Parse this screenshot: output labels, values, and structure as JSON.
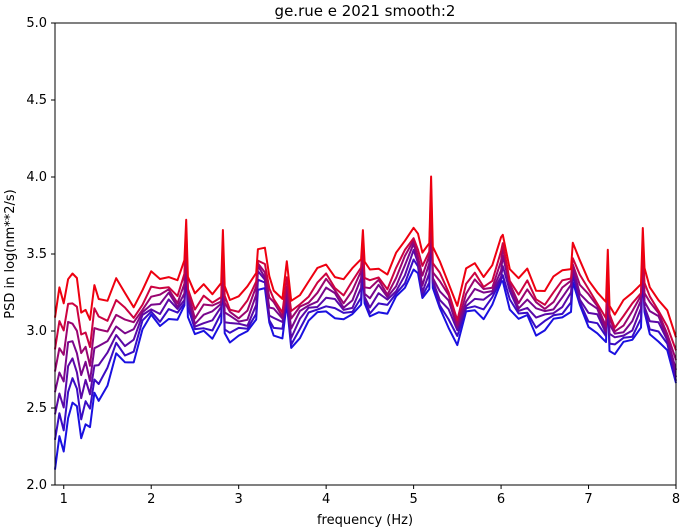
{
  "chart_data": {
    "type": "line",
    "title": "ge.rue e 2021 smooth:2",
    "xlabel": "frequency (Hz)",
    "ylabel": "PSD in log(nm**2/s)",
    "xlim": [
      0.9,
      8.0
    ],
    "ylim": [
      2.0,
      5.0
    ],
    "xticks": [
      1,
      2,
      3,
      4,
      5,
      6,
      7,
      8
    ],
    "yticks": [
      2.0,
      2.5,
      3.0,
      3.5,
      4.0,
      4.5,
      5.0
    ],
    "xtick_labels": [
      "1",
      "2",
      "3",
      "4",
      "5",
      "6",
      "7",
      "8"
    ],
    "ytick_labels": [
      "2.0",
      "2.5",
      "3.0",
      "3.5",
      "4.0",
      "4.5",
      "5.0"
    ],
    "grid": false,
    "legend": "none",
    "series_colors": [
      "#1a10e0",
      "#3a0cc4",
      "#5a09a8",
      "#7a078c",
      "#9a0570",
      "#cc0340",
      "#ee0010"
    ],
    "baseline": {
      "x": [
        0.9,
        0.95,
        1.0,
        1.05,
        1.1,
        1.15,
        1.2,
        1.25,
        1.3,
        1.35,
        1.4,
        1.5,
        1.6,
        1.7,
        1.8,
        1.9,
        2.0,
        2.1,
        2.2,
        2.3,
        2.38,
        2.4,
        2.42,
        2.5,
        2.6,
        2.7,
        2.8,
        2.82,
        2.84,
        2.9,
        3.0,
        3.1,
        3.2,
        3.22,
        3.3,
        3.35,
        3.4,
        3.5,
        3.55,
        3.6,
        3.7,
        3.8,
        3.9,
        4.0,
        4.1,
        4.2,
        4.3,
        4.4,
        4.42,
        4.44,
        4.5,
        4.6,
        4.7,
        4.8,
        4.9,
        5.0,
        5.05,
        5.1,
        5.18,
        5.2,
        5.22,
        5.3,
        5.4,
        5.5,
        5.6,
        5.7,
        5.8,
        5.9,
        6.0,
        6.02,
        6.1,
        6.2,
        6.3,
        6.4,
        6.5,
        6.6,
        6.7,
        6.8,
        6.82,
        6.9,
        7.0,
        7.1,
        7.2,
        7.22,
        7.24,
        7.3,
        7.4,
        7.5,
        7.6,
        7.62,
        7.64,
        7.7,
        7.8,
        7.9,
        8.0
      ],
      "y": [
        3.05,
        3.2,
        3.1,
        3.3,
        3.32,
        3.25,
        3.05,
        3.1,
        3.0,
        3.2,
        3.15,
        3.15,
        3.25,
        3.15,
        3.1,
        3.2,
        3.28,
        3.25,
        3.3,
        3.25,
        3.35,
        3.65,
        3.3,
        3.15,
        3.2,
        3.18,
        3.25,
        3.55,
        3.2,
        3.15,
        3.15,
        3.18,
        3.3,
        3.48,
        3.45,
        3.25,
        3.2,
        3.15,
        3.35,
        3.1,
        3.18,
        3.25,
        3.3,
        3.35,
        3.3,
        3.25,
        3.3,
        3.4,
        3.6,
        3.35,
        3.3,
        3.35,
        3.3,
        3.4,
        3.5,
        3.62,
        3.55,
        3.4,
        3.5,
        3.95,
        3.45,
        3.35,
        3.25,
        3.1,
        3.3,
        3.35,
        3.3,
        3.35,
        3.5,
        3.55,
        3.35,
        3.25,
        3.3,
        3.2,
        3.2,
        3.25,
        3.3,
        3.35,
        3.5,
        3.35,
        3.25,
        3.2,
        3.1,
        3.42,
        3.1,
        3.05,
        3.1,
        3.15,
        3.25,
        3.6,
        3.3,
        3.2,
        3.15,
        3.05,
        2.85
      ]
    },
    "series": [
      {
        "color": "#1a10e0",
        "offset": -0.2,
        "low_freq_drop": 0.75
      },
      {
        "color": "#3a0cc4",
        "offset": -0.16,
        "low_freq_drop": 0.62
      },
      {
        "color": "#5a09a8",
        "offset": -0.12,
        "low_freq_drop": 0.5
      },
      {
        "color": "#7a078c",
        "offset": -0.08,
        "low_freq_drop": 0.38
      },
      {
        "color": "#9a0570",
        "offset": -0.04,
        "low_freq_drop": 0.26
      },
      {
        "color": "#cc0340",
        "offset": 0.0,
        "low_freq_drop": 0.14
      },
      {
        "color": "#ee0010",
        "offset": 0.08,
        "low_freq_drop": 0.02
      }
    ]
  }
}
